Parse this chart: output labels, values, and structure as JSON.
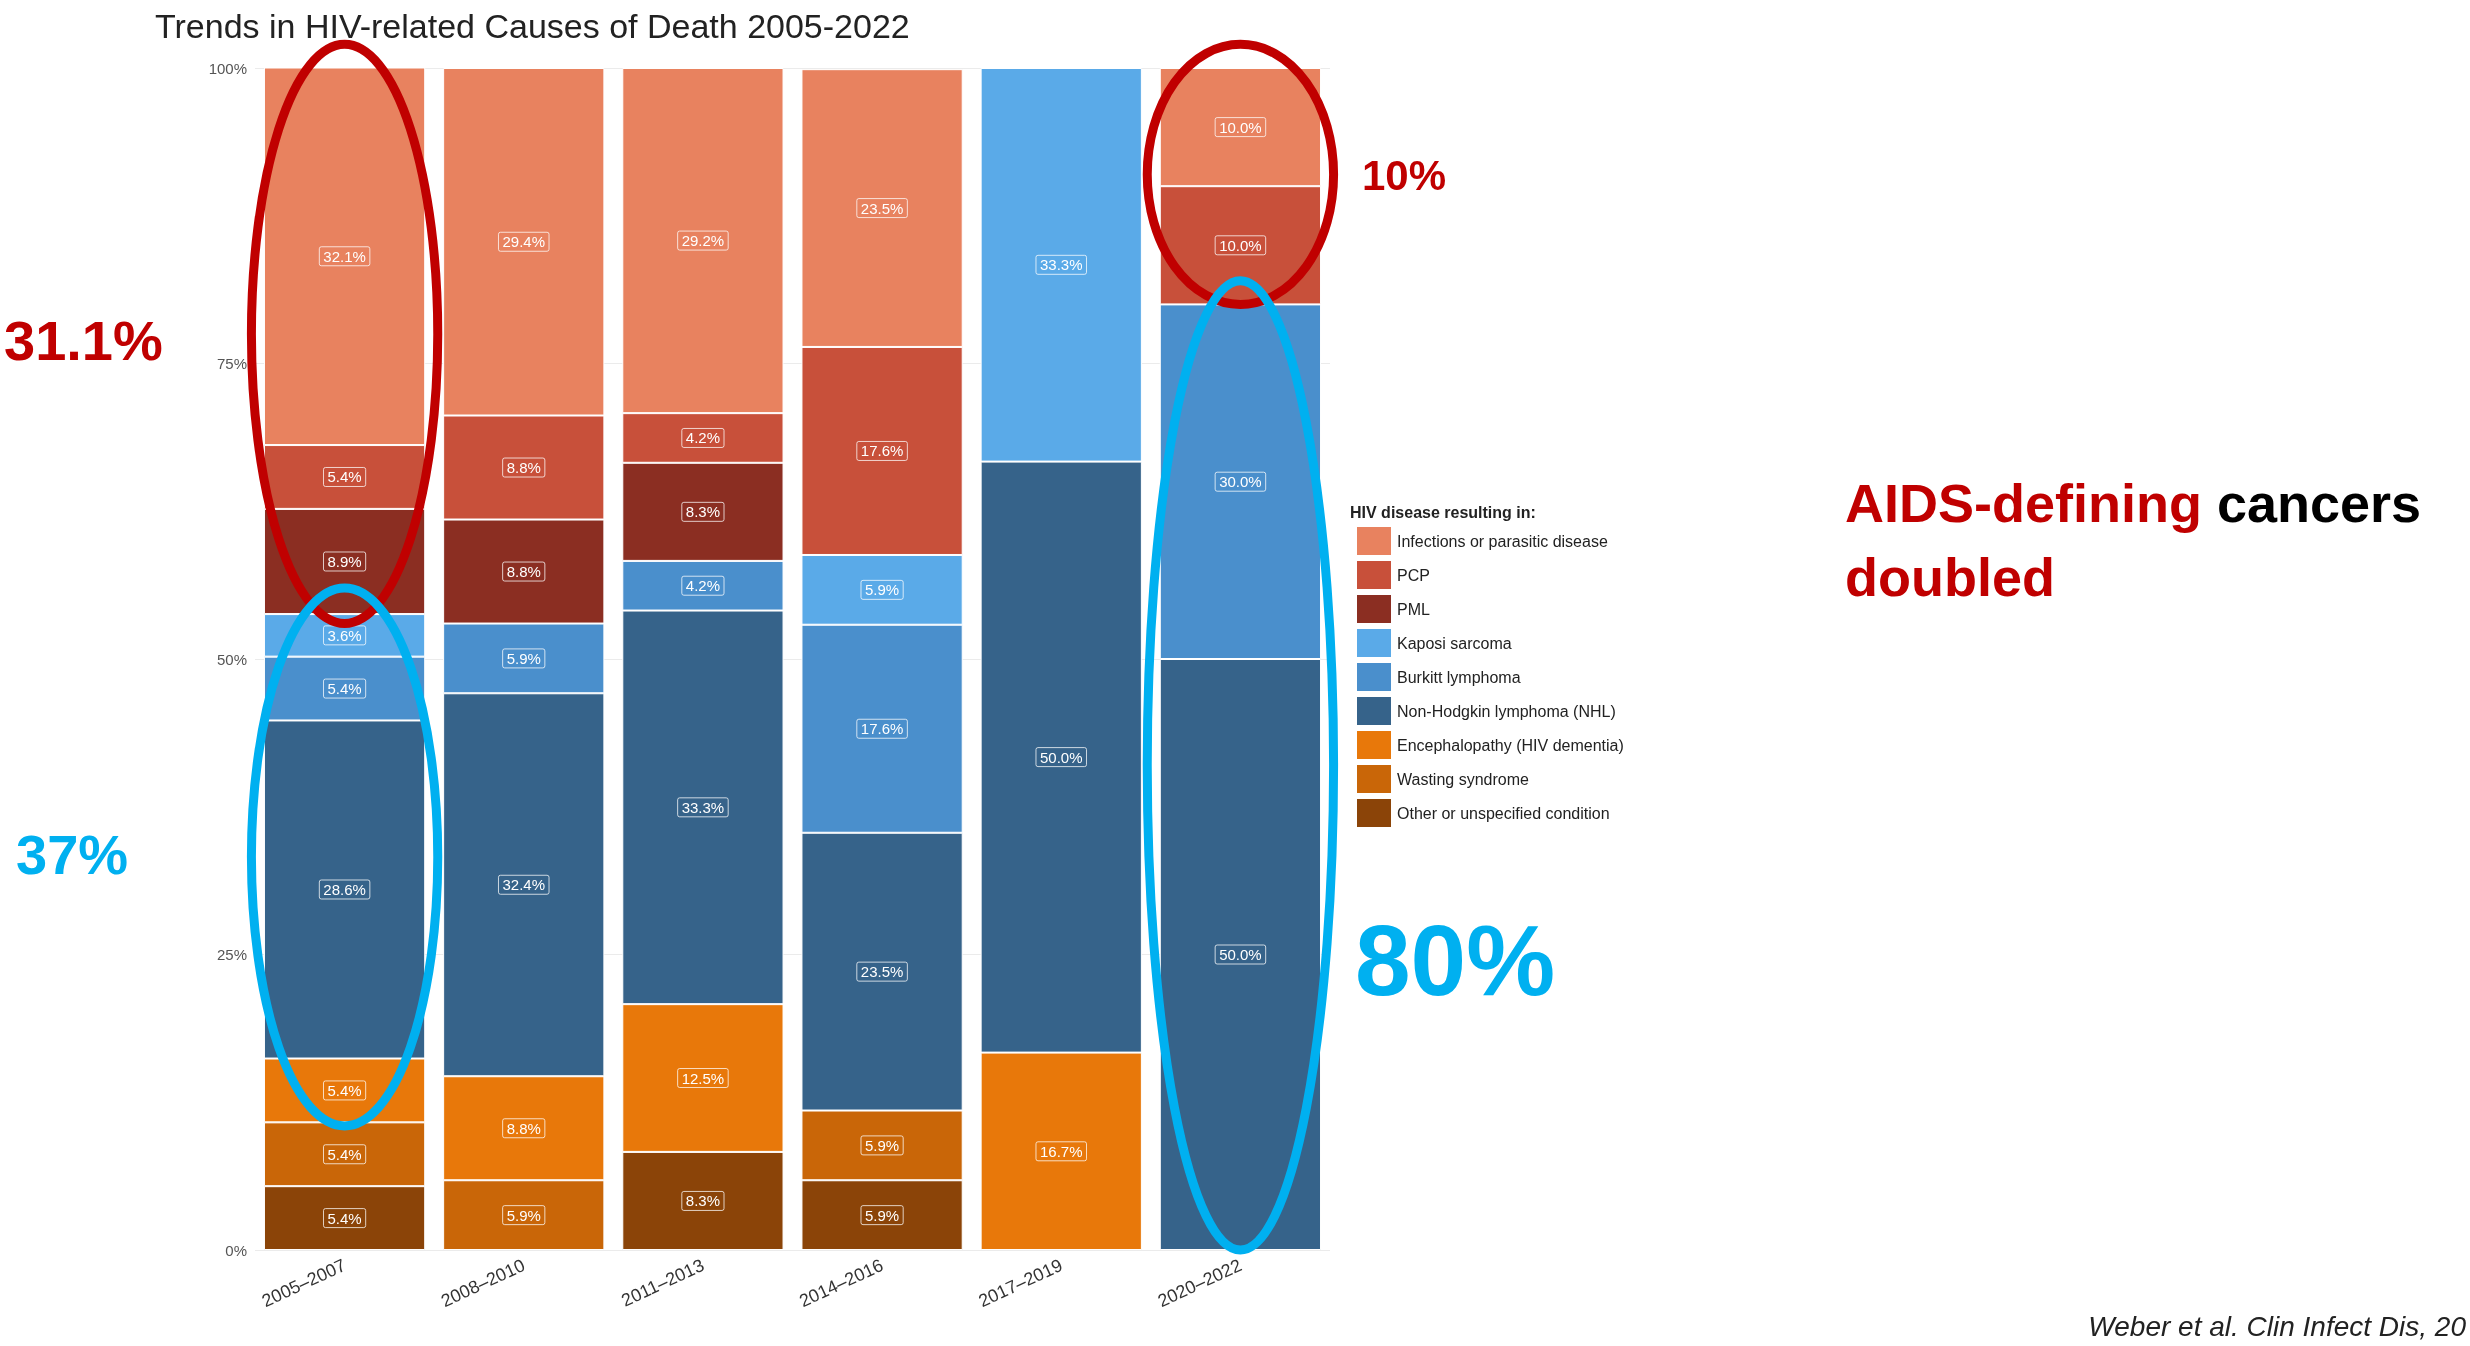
{
  "chart_data": {
    "type": "bar",
    "title": "Trends in HIV-related Causes of Death 2005-2022",
    "categories": [
      "2005–2007",
      "2008–2010",
      "2011–2013",
      "2014–2016",
      "2017–2019",
      "2020–2022"
    ],
    "stacked": true,
    "legend_title": "HIV disease resulting in:",
    "legend": "right",
    "grid": "y",
    "ylim": [
      0,
      100
    ],
    "yticks": [
      {
        "value": 0,
        "label": "0%"
      },
      {
        "value": 25,
        "label": "25%"
      },
      {
        "value": 50,
        "label": "50%"
      },
      {
        "value": 75,
        "label": "75%"
      },
      {
        "value": 100,
        "label": "100%"
      }
    ],
    "series": [
      {
        "name": "Other or unspecified condition",
        "color": "#8b4408",
        "values": [
          5.4,
          null,
          8.3,
          5.9,
          null,
          null
        ],
        "value_labels": [
          "5.4%",
          null,
          "8.3%",
          "5.9%",
          null,
          null
        ]
      },
      {
        "name": "Wasting syndrome",
        "color": "#c96608",
        "values": [
          5.4,
          5.9,
          null,
          5.9,
          null,
          null
        ],
        "value_labels": [
          "5.4%",
          "5.9%",
          null,
          "5.9%",
          null,
          null
        ]
      },
      {
        "name": "Encephalopathy (HIV dementia)",
        "color": "#e8780a",
        "values": [
          5.4,
          8.8,
          12.5,
          null,
          16.7,
          null
        ],
        "value_labels": [
          "5.4%",
          "8.8%",
          "12.5%",
          null,
          "16.7%",
          null
        ]
      },
      {
        "name": "Non-Hodgkin lymphoma (NHL)",
        "color": "#36638a",
        "values": [
          28.6,
          32.4,
          33.3,
          23.5,
          50.0,
          50.0
        ],
        "value_labels": [
          "28.6%",
          "32.4%",
          "33.3%",
          "23.5%",
          "50.0%",
          "50.0%"
        ]
      },
      {
        "name": "Burkitt lymphoma",
        "color": "#4a8fcc",
        "values": [
          5.4,
          5.9,
          4.2,
          17.6,
          null,
          30.0
        ],
        "value_labels": [
          "5.4%",
          "5.9%",
          "4.2%",
          "17.6%",
          null,
          "30.0%"
        ]
      },
      {
        "name": "Kaposi sarcoma",
        "color": "#5aaae8",
        "values": [
          3.6,
          null,
          null,
          5.9,
          33.3,
          null
        ],
        "value_labels": [
          "3.6%",
          null,
          null,
          "5.9%",
          "33.3%",
          null
        ]
      },
      {
        "name": "PML",
        "color": "#8b2e22",
        "values": [
          8.9,
          8.8,
          8.3,
          null,
          null,
          null
        ],
        "value_labels": [
          "8.9%",
          "8.8%",
          "8.3%",
          null,
          null,
          null
        ]
      },
      {
        "name": "PCP",
        "color": "#c8503a",
        "values": [
          5.4,
          8.8,
          4.2,
          17.6,
          null,
          10.0
        ],
        "value_labels": [
          "5.4%",
          "8.8%",
          "4.2%",
          "17.6%",
          null,
          "10.0%"
        ]
      },
      {
        "name": "Infections or parasitic disease",
        "color": "#e8825f",
        "values": [
          32.1,
          29.4,
          29.2,
          23.5,
          null,
          10.0
        ],
        "value_labels": [
          "32.1%",
          "29.4%",
          "29.2%",
          "23.5%",
          null,
          "10.0%"
        ]
      }
    ],
    "annotations": [
      "31.1%",
      "37%",
      "10%",
      "80%",
      "AIDS-defining cancers doubled",
      "Weber et al. Clin Infect Dis, 20"
    ]
  }
}
